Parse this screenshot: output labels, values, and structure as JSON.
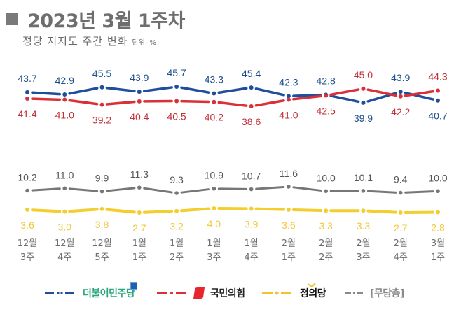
{
  "header": {
    "title": "2023년 3월 1주차",
    "subtitle": "정당 지지도 주간 변화",
    "unit": "단위: %"
  },
  "chart_data": {
    "type": "line",
    "title": "2023년 3월 1주차",
    "subtitle": "정당 지지도 주간 변화",
    "unit": "%",
    "xlabel": "",
    "ylabel": "",
    "grid": false,
    "legend_position": "bottom",
    "categories": [
      [
        "12월",
        "3주"
      ],
      [
        "12월",
        "4주"
      ],
      [
        "12월",
        "5주"
      ],
      [
        "1월",
        "1주"
      ],
      [
        "1월",
        "2주"
      ],
      [
        "1월",
        "3주"
      ],
      [
        "1월",
        "4주"
      ],
      [
        "2월",
        "1주"
      ],
      [
        "2월",
        "2주"
      ],
      [
        "2월",
        "3주"
      ],
      [
        "2월",
        "4주"
      ],
      [
        "3월",
        "1주"
      ]
    ],
    "series": [
      {
        "name": "더불어민주당",
        "color": "#1f4e9c",
        "label_color": "#1f4e8c",
        "values": [
          43.7,
          42.9,
          45.5,
          43.9,
          45.7,
          43.3,
          45.4,
          42.3,
          42.8,
          39.9,
          43.9,
          40.7
        ],
        "label_pos": [
          "above",
          "above",
          "above",
          "above",
          "above",
          "above",
          "above",
          "above",
          "above",
          "below",
          "above",
          "below"
        ]
      },
      {
        "name": "국민의힘",
        "color": "#d9303a",
        "label_color": "#c0303a",
        "values": [
          41.4,
          41.0,
          39.2,
          40.4,
          40.5,
          40.2,
          38.6,
          41.0,
          42.5,
          45.0,
          42.2,
          44.3
        ],
        "label_pos": [
          "below",
          "below",
          "below",
          "below",
          "below",
          "below",
          "below",
          "below",
          "below",
          "above",
          "below",
          "above"
        ]
      },
      {
        "name": "정의당",
        "color": "#f2cf2e",
        "label_color": "#f0c83a",
        "values": [
          3.6,
          3.0,
          3.8,
          2.7,
          3.2,
          4.0,
          3.9,
          3.6,
          3.3,
          3.3,
          2.7,
          2.8
        ],
        "label_pos": [
          "below",
          "below",
          "below",
          "below",
          "below",
          "below",
          "below",
          "below",
          "below",
          "below",
          "below",
          "below"
        ]
      },
      {
        "name": "[무당층]",
        "color": "#777777",
        "label_color": "#555555",
        "values": [
          10.2,
          11.0,
          9.9,
          11.3,
          9.3,
          10.9,
          10.7,
          11.6,
          10.0,
          10.1,
          9.4,
          10.0
        ],
        "label_pos": [
          "above",
          "above",
          "above",
          "above",
          "above",
          "above",
          "above",
          "above",
          "above",
          "above",
          "above",
          "above"
        ]
      }
    ]
  },
  "legend": [
    {
      "name": "더불어민주당",
      "icon": "democratic-party-logo"
    },
    {
      "name": "국민의힘",
      "icon": "people-power-party-logo"
    },
    {
      "name": "정의당",
      "icon": "justice-party-check-mark"
    },
    {
      "name": "[무당층]",
      "icon": "none"
    }
  ]
}
